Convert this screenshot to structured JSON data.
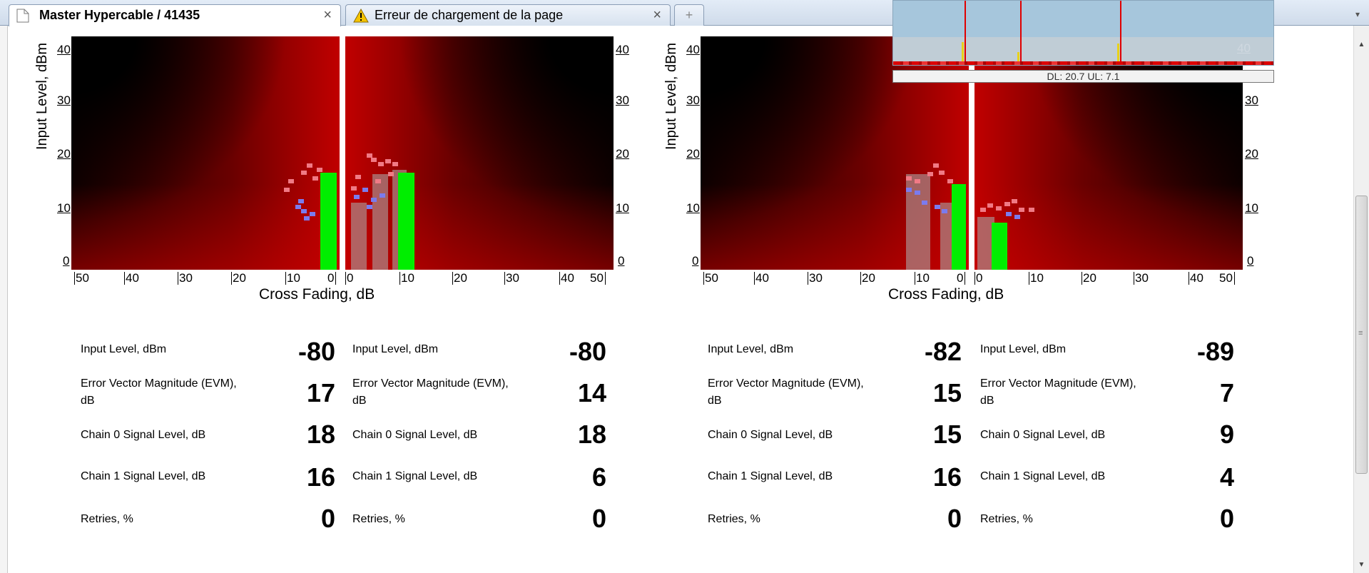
{
  "tabs": [
    {
      "title": "Master Hypercable / 41435",
      "icon": "page-icon",
      "close": "×",
      "active": true
    },
    {
      "title": "Erreur de chargement de la page",
      "icon": "warning-icon",
      "close": "×",
      "active": false
    }
  ],
  "new_tab_label": "+",
  "charts": {
    "y_axis_label": "Input Level, dBm",
    "y_ticks": [
      "40",
      "30",
      "20",
      "10",
      "0"
    ],
    "x_ticks_left": [
      "50",
      "40",
      "30",
      "20",
      "10",
      "0"
    ],
    "x_ticks_right": [
      "0",
      "10",
      "20",
      "30",
      "40",
      "50"
    ],
    "x_axis_label": "Cross Fading, dB"
  },
  "overlay": {
    "tick": "40",
    "caption": "DL: 20.7 UL: 7.1"
  },
  "stats": {
    "group1": [
      {
        "label": "Input Level, dBm",
        "value": "-80"
      },
      {
        "label": "Error Vector Magnitude (EVM), dB",
        "value": "17"
      },
      {
        "label": "Chain 0 Signal Level, dB",
        "value": "18"
      },
      {
        "label": "Chain 1 Signal Level, dB",
        "value": "16"
      },
      {
        "label": "Retries, %",
        "value": "0"
      }
    ],
    "group2": [
      {
        "label": "Input Level, dBm",
        "value": "-80"
      },
      {
        "label": "Error Vector Magnitude (EVM), dB",
        "value": "14"
      },
      {
        "label": "Chain 0 Signal Level, dB",
        "value": "18"
      },
      {
        "label": "Chain 1 Signal Level, dB",
        "value": "6"
      },
      {
        "label": "Retries, %",
        "value": "0"
      }
    ],
    "group3": [
      {
        "label": "Input Level, dBm",
        "value": "-82"
      },
      {
        "label": "Error Vector Magnitude (EVM), dB",
        "value": "15"
      },
      {
        "label": "Chain 0 Signal Level, dB",
        "value": "15"
      },
      {
        "label": "Chain 1 Signal Level, dB",
        "value": "16"
      },
      {
        "label": "Retries, %",
        "value": "0"
      }
    ],
    "group4": [
      {
        "label": "Input Level, dBm",
        "value": "-89"
      },
      {
        "label": "Error Vector Magnitude (EVM), dB",
        "value": "7"
      },
      {
        "label": "Chain 0 Signal Level, dB",
        "value": "9"
      },
      {
        "label": "Chain 1 Signal Level, dB",
        "value": "4"
      },
      {
        "label": "Retries, %",
        "value": "0"
      }
    ]
  },
  "colors": {
    "signal_bar": "#00ee00",
    "history_bar": "#aa9696",
    "evm_dot": "#f07a85",
    "level_dot": "#7b7bee"
  }
}
